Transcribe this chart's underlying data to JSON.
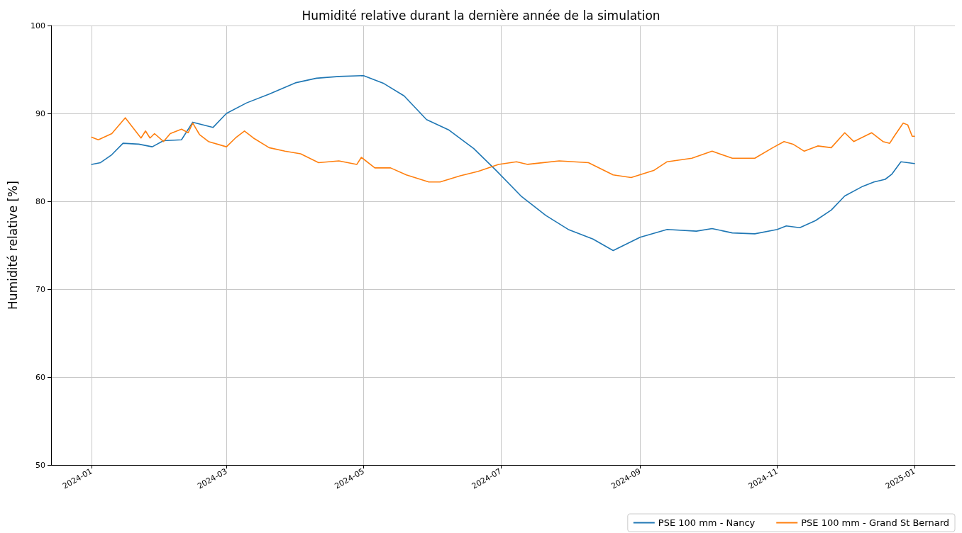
{
  "chart_data": {
    "type": "line",
    "title": "Humidité relative durant la dernière année de la simulation",
    "ylabel": "Humidité relative [%]",
    "xlim": [
      "2023-12-14",
      "2025-01-19"
    ],
    "ylim": [
      50,
      100
    ],
    "yticks": [
      50,
      60,
      70,
      80,
      90,
      100
    ],
    "xticks": [
      {
        "value": "2024-01-01",
        "label": "2024-01"
      },
      {
        "value": "2024-03-01",
        "label": "2024-03"
      },
      {
        "value": "2024-05-01",
        "label": "2024-05"
      },
      {
        "value": "2024-07-01",
        "label": "2024-07"
      },
      {
        "value": "2024-09-01",
        "label": "2024-09"
      },
      {
        "value": "2024-11-01",
        "label": "2024-11"
      },
      {
        "value": "2025-01-01",
        "label": "2025-01"
      }
    ],
    "grid": true,
    "legend": "bottom right",
    "marker": "none",
    "line_style": "solid",
    "series": [
      {
        "name": "PSE 100 mm - Nancy",
        "color": "#1f77b4",
        "x": [
          "2024-01-01",
          "2024-01-05",
          "2024-01-10",
          "2024-01-15",
          "2024-01-22",
          "2024-01-28",
          "2024-02-02",
          "2024-02-10",
          "2024-02-15",
          "2024-02-24",
          "2024-03-01",
          "2024-03-10",
          "2024-03-20",
          "2024-04-01",
          "2024-04-10",
          "2024-04-20",
          "2024-05-01",
          "2024-05-10",
          "2024-05-19",
          "2024-05-29",
          "2024-06-08",
          "2024-06-19",
          "2024-06-29",
          "2024-07-10",
          "2024-07-21",
          "2024-07-31",
          "2024-08-11",
          "2024-08-20",
          "2024-09-01",
          "2024-09-13",
          "2024-09-26",
          "2024-10-03",
          "2024-10-12",
          "2024-10-22",
          "2024-11-01",
          "2024-11-05",
          "2024-11-11",
          "2024-11-18",
          "2024-11-25",
          "2024-12-01",
          "2024-12-09",
          "2024-12-14",
          "2024-12-19",
          "2024-12-22",
          "2024-12-26",
          "2025-01-01"
        ],
        "values": [
          84.2,
          84.4,
          85.3,
          86.6,
          86.5,
          86.2,
          86.9,
          87.0,
          89.0,
          88.4,
          90.0,
          91.2,
          92.2,
          93.5,
          94.0,
          94.2,
          94.3,
          93.4,
          92.0,
          89.3,
          88.1,
          86.0,
          83.5,
          80.6,
          78.4,
          76.8,
          75.7,
          74.4,
          75.9,
          76.8,
          76.6,
          76.9,
          76.4,
          76.3,
          76.8,
          77.2,
          77.0,
          77.8,
          79.0,
          80.6,
          81.7,
          82.2,
          82.5,
          83.1,
          84.5,
          84.3
        ]
      },
      {
        "name": "PSE 100 mm - Grand St Bernard",
        "color": "#ff7f0e",
        "x": [
          "2024-01-01",
          "2024-01-04",
          "2024-01-10",
          "2024-01-16",
          "2024-01-23",
          "2024-01-25",
          "2024-01-27",
          "2024-01-29",
          "2024-02-02",
          "2024-02-05",
          "2024-02-10",
          "2024-02-13",
          "2024-02-15",
          "2024-02-18",
          "2024-02-22",
          "2024-03-01",
          "2024-03-05",
          "2024-03-09",
          "2024-03-13",
          "2024-03-20",
          "2024-03-27",
          "2024-04-03",
          "2024-04-11",
          "2024-04-20",
          "2024-04-28",
          "2024-04-30",
          "2024-05-06",
          "2024-05-13",
          "2024-05-20",
          "2024-05-30",
          "2024-06-04",
          "2024-06-13",
          "2024-06-21",
          "2024-06-30",
          "2024-07-08",
          "2024-07-13",
          "2024-07-27",
          "2024-08-09",
          "2024-08-20",
          "2024-08-28",
          "2024-09-07",
          "2024-09-13",
          "2024-09-24",
          "2024-10-03",
          "2024-10-12",
          "2024-10-22",
          "2024-10-30",
          "2024-11-04",
          "2024-11-08",
          "2024-11-13",
          "2024-11-19",
          "2024-11-25",
          "2024-12-01",
          "2024-12-05",
          "2024-12-13",
          "2024-12-18",
          "2024-12-21",
          "2024-12-23",
          "2024-12-27",
          "2024-12-29",
          "2024-12-31",
          "2025-01-01"
        ],
        "values": [
          87.3,
          87.0,
          87.7,
          89.5,
          87.2,
          88.0,
          87.2,
          87.7,
          86.8,
          87.7,
          88.2,
          87.8,
          88.9,
          87.6,
          86.8,
          86.2,
          87.2,
          88.0,
          87.2,
          86.1,
          85.7,
          85.4,
          84.4,
          84.6,
          84.2,
          85.0,
          83.8,
          83.8,
          83.0,
          82.2,
          82.2,
          82.9,
          83.4,
          84.2,
          84.5,
          84.2,
          84.6,
          84.4,
          83.0,
          82.7,
          83.5,
          84.5,
          84.9,
          85.7,
          84.9,
          84.9,
          86.1,
          86.8,
          86.5,
          85.7,
          86.3,
          86.1,
          87.8,
          86.8,
          87.8,
          86.8,
          86.6,
          87.4,
          88.9,
          88.7,
          87.4,
          87.4
        ]
      }
    ]
  }
}
